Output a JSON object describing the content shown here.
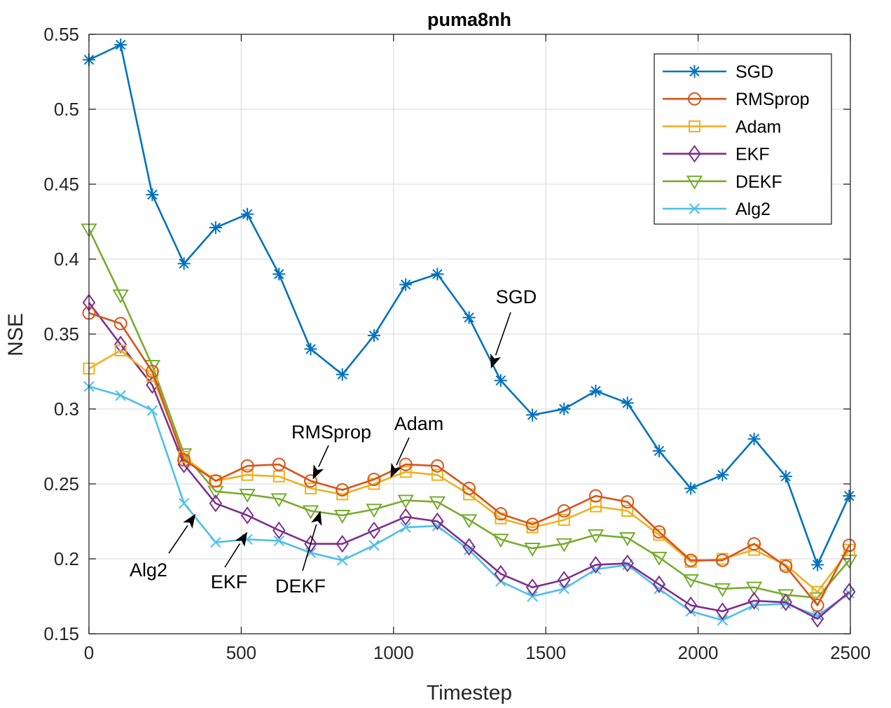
{
  "chart_data": {
    "type": "line",
    "title": "puma8nh",
    "xlabel": "Timestep",
    "ylabel": "NSE",
    "xlim": [
      0,
      2500
    ],
    "ylim": [
      0.15,
      0.55
    ],
    "grid": true,
    "legend_position": "top-right",
    "x_ticks": [
      0,
      500,
      1000,
      1500,
      2000,
      2500
    ],
    "y_ticks": [
      0.15,
      0.2,
      0.25,
      0.3,
      0.35,
      0.4,
      0.45,
      0.5,
      0.55
    ],
    "x_tick_labels": [
      "0",
      "500",
      "1000",
      "1500",
      "2000",
      "2500"
    ],
    "y_tick_labels": [
      "0.15",
      "0.2",
      "0.25",
      "0.3",
      "0.35",
      "0.4",
      "0.45",
      "0.5",
      "0.55"
    ],
    "x": [
      0,
      104,
      208,
      312,
      416,
      520,
      624,
      728,
      832,
      936,
      1040,
      1144,
      1248,
      1352,
      1456,
      1560,
      1664,
      1768,
      1872,
      1976,
      2080,
      2184,
      2288,
      2392,
      2496
    ],
    "series": [
      {
        "name": "SGD",
        "color": "#0072BD",
        "marker": "asterisk",
        "values": [
          0.533,
          0.543,
          0.443,
          0.397,
          0.421,
          0.43,
          0.39,
          0.34,
          0.323,
          0.349,
          0.383,
          0.39,
          0.361,
          0.319,
          0.296,
          0.3,
          0.312,
          0.304,
          0.272,
          0.247,
          0.256,
          0.28,
          0.255,
          0.196,
          0.242
        ]
      },
      {
        "name": "RMSprop",
        "color": "#D95319",
        "marker": "circle",
        "values": [
          0.364,
          0.357,
          0.325,
          0.266,
          0.252,
          0.262,
          0.263,
          0.252,
          0.246,
          0.253,
          0.263,
          0.262,
          0.247,
          0.23,
          0.223,
          0.232,
          0.242,
          0.238,
          0.218,
          0.199,
          0.199,
          0.21,
          0.195,
          0.169,
          0.209
        ]
      },
      {
        "name": "Adam",
        "color": "#EDB120",
        "marker": "square",
        "values": [
          0.327,
          0.339,
          0.322,
          0.268,
          0.252,
          0.256,
          0.255,
          0.247,
          0.243,
          0.25,
          0.258,
          0.256,
          0.243,
          0.227,
          0.221,
          0.226,
          0.235,
          0.232,
          0.216,
          0.198,
          0.2,
          0.206,
          0.196,
          0.178,
          0.206
        ]
      },
      {
        "name": "EKF",
        "color": "#7E2F8E",
        "marker": "diamond",
        "values": [
          0.371,
          0.343,
          0.316,
          0.263,
          0.237,
          0.229,
          0.219,
          0.21,
          0.21,
          0.219,
          0.228,
          0.225,
          0.208,
          0.19,
          0.181,
          0.186,
          0.196,
          0.197,
          0.183,
          0.169,
          0.165,
          0.172,
          0.171,
          0.16,
          0.178
        ]
      },
      {
        "name": "DEKF",
        "color": "#77AC30",
        "marker": "triangle-down",
        "values": [
          0.42,
          0.376,
          0.329,
          0.27,
          0.245,
          0.243,
          0.24,
          0.232,
          0.229,
          0.233,
          0.239,
          0.238,
          0.226,
          0.213,
          0.207,
          0.21,
          0.216,
          0.214,
          0.201,
          0.186,
          0.18,
          0.181,
          0.176,
          0.174,
          0.199
        ]
      },
      {
        "name": "Alg2",
        "color": "#4DBEEE",
        "marker": "x",
        "values": [
          0.315,
          0.309,
          0.299,
          0.237,
          0.211,
          0.213,
          0.212,
          0.204,
          0.199,
          0.209,
          0.221,
          0.222,
          0.206,
          0.185,
          0.175,
          0.18,
          0.193,
          0.196,
          0.18,
          0.165,
          0.159,
          0.169,
          0.17,
          0.162,
          0.177
        ]
      }
    ],
    "annotations": [
      {
        "text": "SGD",
        "tip": [
          1320,
          0.327
        ]
      },
      {
        "text": "RMSprop",
        "tip": [
          735,
          0.253
        ]
      },
      {
        "text": "Adam",
        "tip": [
          990,
          0.254
        ]
      },
      {
        "text": "Alg2",
        "tip": [
          350,
          0.23
        ]
      },
      {
        "text": "EKF",
        "tip": [
          520,
          0.218
        ]
      },
      {
        "text": "DEKF",
        "tip": [
          760,
          0.232
        ]
      }
    ]
  }
}
